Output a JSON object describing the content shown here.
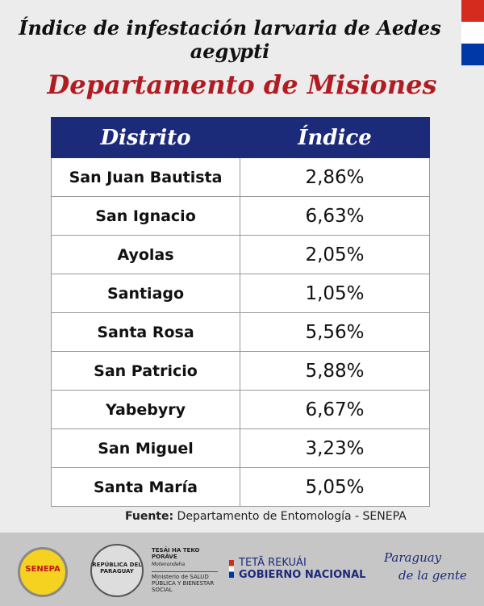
{
  "header": {
    "title": "Índice de infestación larvaria de Aedes aegypti",
    "subtitle": "Departamento de Misiones"
  },
  "table": {
    "columns": [
      "Distrito",
      "Índice"
    ],
    "rows": [
      [
        "San Juan Bautista",
        "2,86%"
      ],
      [
        "San Ignacio",
        "6,63%"
      ],
      [
        "Ayolas",
        "2,05%"
      ],
      [
        "Santiago",
        "1,05%"
      ],
      [
        "Santa Rosa",
        "5,56%"
      ],
      [
        "San Patricio",
        "5,88%"
      ],
      [
        "Yabebyry",
        "6,67%"
      ],
      [
        "San Miguel",
        "3,23%"
      ],
      [
        "Santa María",
        "5,05%"
      ]
    ]
  },
  "source": {
    "label": "Fuente:",
    "text": "Departamento de Entomología - SENEPA"
  },
  "footer": {
    "senepa": "SENEPA",
    "seal": "REPÚBLICA DEL PARAGUAY",
    "ministry_top": "TESÃI HA TEKO PORÃVE",
    "ministry_sub": "Motenondeha",
    "ministry_name": "Ministerio de SALUD PÚBLICA Y BIENESTAR SOCIAL",
    "gov_top": "TETÃ REKUÁI",
    "gov_bottom": "GOBIERNO NACIONAL",
    "slogan_top": "Paraguay",
    "slogan_bottom": "de la gente"
  }
}
